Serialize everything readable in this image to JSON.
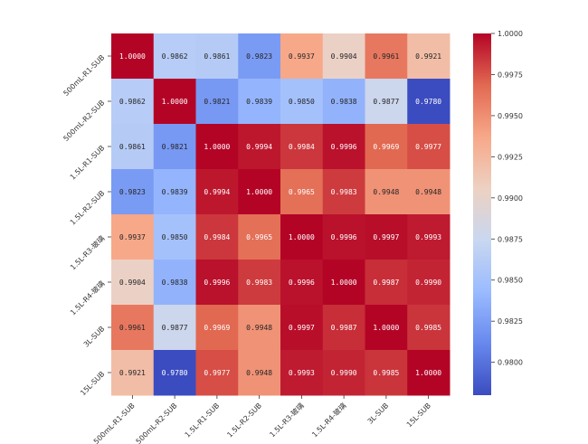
{
  "chart_data": {
    "type": "heatmap",
    "title": "",
    "xlabel": "",
    "ylabel": "",
    "row_labels": [
      "500mL-R1-SUB",
      "500mL-R2-SUB",
      "1.5L-R1-SUB",
      "1.5L-R2-SUB",
      "1.5L-R3-玻璃",
      "1.5L-R4-玻璃",
      "3L-SUB",
      "15L-SUB"
    ],
    "col_labels": [
      "500mL-R1-SUB",
      "500mL-R2-SUB",
      "1.5L-R1-SUB",
      "1.5L-R2-SUB",
      "1.5L-R3-玻璃",
      "1.5L-R4-玻璃",
      "3L-SUB",
      "15L-SUB"
    ],
    "values": [
      [
        1.0,
        0.9862,
        0.9861,
        0.9823,
        0.9937,
        0.9904,
        0.9961,
        0.9921
      ],
      [
        0.9862,
        1.0,
        0.9821,
        0.9839,
        0.985,
        0.9838,
        0.9877,
        0.978
      ],
      [
        0.9861,
        0.9821,
        1.0,
        0.9994,
        0.9984,
        0.9996,
        0.9969,
        0.9977
      ],
      [
        0.9823,
        0.9839,
        0.9994,
        1.0,
        0.9965,
        0.9983,
        0.9948,
        0.9948
      ],
      [
        0.9937,
        0.985,
        0.9984,
        0.9965,
        1.0,
        0.9996,
        0.9997,
        0.9993
      ],
      [
        0.9904,
        0.9838,
        0.9996,
        0.9983,
        0.9996,
        1.0,
        0.9987,
        0.999
      ],
      [
        0.9961,
        0.9877,
        0.9969,
        0.9948,
        0.9997,
        0.9987,
        1.0,
        0.9985
      ],
      [
        0.9921,
        0.978,
        0.9977,
        0.9948,
        0.9993,
        0.999,
        0.9985,
        1.0
      ]
    ],
    "annotation_format": "0.0000",
    "colormap": "coolwarm",
    "color_range": [
      0.978,
      1.0
    ],
    "colorbar": {
      "placement": "right",
      "ticks": [
        1.0,
        0.9975,
        0.995,
        0.9925,
        0.99,
        0.9875,
        0.985,
        0.9825,
        0.98
      ],
      "tick_labels": [
        "1.0000",
        "0.9975",
        "0.9950",
        "0.9925",
        "0.9900",
        "0.9875",
        "0.9850",
        "0.9825",
        "0.9800"
      ]
    },
    "colormap_stops": [
      "#3b4cc0",
      "#6788ee",
      "#9abbff",
      "#c9d7f0",
      "#edd1c2",
      "#f7a889",
      "#e26952",
      "#b40426"
    ],
    "grid": false,
    "legend": "none"
  }
}
